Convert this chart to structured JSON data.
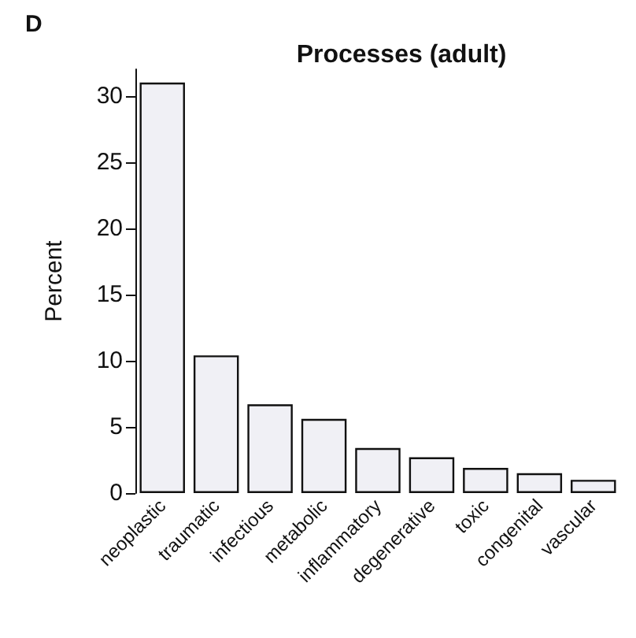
{
  "chart_data": {
    "type": "bar",
    "title": "Processes (adult)",
    "ylabel": "Percent",
    "annotations": [
      "D"
    ],
    "categories": [
      "neoplastic",
      "traumatic",
      "infectious",
      "metabolic",
      "inflammatory",
      "degenerative",
      "toxic",
      "congenital",
      "vascular"
    ],
    "values": [
      31,
      10.4,
      6.7,
      5.6,
      3.4,
      2.7,
      1.9,
      1.5,
      1.0
    ],
    "color": "#f0f0f5",
    "ylim": [
      0,
      32
    ],
    "yticks": [
      0,
      5,
      10,
      15,
      20,
      25,
      30
    ],
    "grid": false
  }
}
